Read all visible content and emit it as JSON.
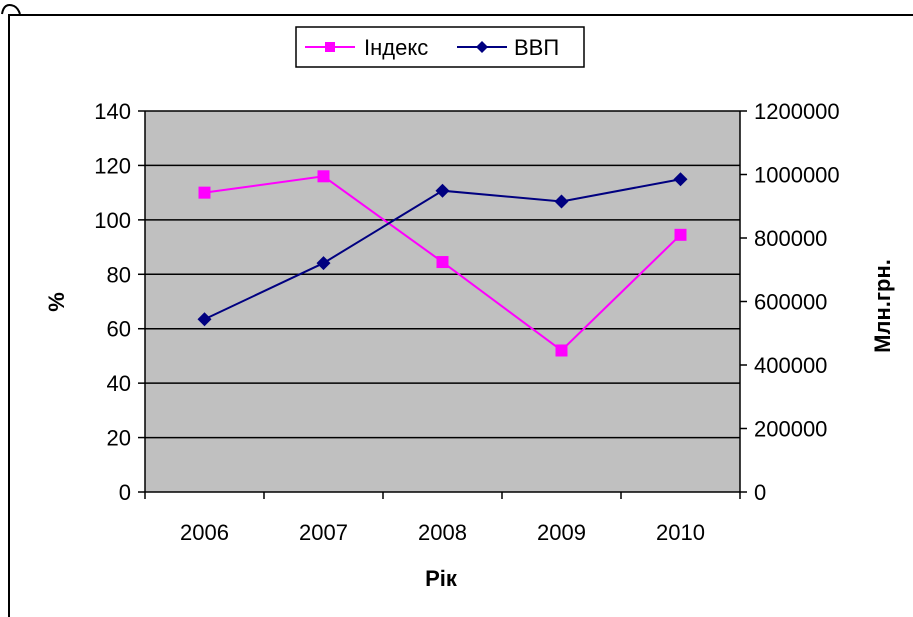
{
  "chart_data": {
    "type": "line",
    "categories": [
      "2006",
      "2007",
      "2008",
      "2009",
      "2010"
    ],
    "series": [
      {
        "name": "Індекс",
        "axis": "left",
        "color": "#FF00FF",
        "marker": "square",
        "values": [
          110,
          116,
          84.5,
          52,
          94.5
        ]
      },
      {
        "name": "ВВП",
        "axis": "right",
        "color": "#000080",
        "marker": "diamond",
        "values": [
          544000,
          721000,
          949000,
          915000,
          985000
        ]
      }
    ],
    "xlabel": "Рік",
    "ylabel": "%",
    "ylabel_right": "Млн.грн.",
    "ylim": [
      0,
      140
    ],
    "yticks": [
      0,
      20,
      40,
      60,
      80,
      100,
      120,
      140
    ],
    "ylim_right": [
      0,
      1200000
    ],
    "yticks_right": [
      0,
      200000,
      400000,
      600000,
      800000,
      1000000,
      1200000
    ],
    "grid": true,
    "plot_background": "#C0C0C0",
    "legend_position": "top"
  }
}
